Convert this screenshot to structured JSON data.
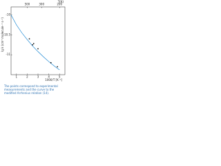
{
  "chart_data": {
    "type": "scatter",
    "xlabel": "1000/T [K⁻¹]",
    "ylabel": "lg k (cm³ molecule⁻¹ s⁻¹)",
    "top_axis_label": "T(K)",
    "top_ticks": [
      500,
      300,
      200
    ],
    "xlim": [
      0.5,
      5.5
    ],
    "xticks": [
      1,
      2,
      3,
      4,
      5
    ],
    "ylim": [
      -11.5,
      -9.8
    ],
    "yticks": [
      -10,
      -10.5,
      -11
    ],
    "series": [
      {
        "name": "modified Arrhenius relation",
        "color": "#2a8fd6",
        "style": "line",
        "x": [
          0.5,
          1,
          1.5,
          2,
          2.5,
          3,
          3.5,
          4,
          4.5,
          5
        ],
        "values": [
          -10.0,
          -10.25,
          -10.45,
          -10.62,
          -10.78,
          -10.92,
          -11.05,
          -11.17,
          -11.28,
          -11.38
        ]
      },
      {
        "name": "experimental measurements",
        "color": "#111111",
        "style": "points",
        "x": [
          2.2,
          2.5,
          2.6,
          3,
          4.2,
          4.8
        ],
        "values": [
          -10.6,
          -10.75,
          -10.72,
          -10.85,
          -11.2,
          -11.3
        ]
      }
    ],
    "caption": "The points correspond to experimental measurements and the curve to the modified Arrhenius relation (14)."
  }
}
